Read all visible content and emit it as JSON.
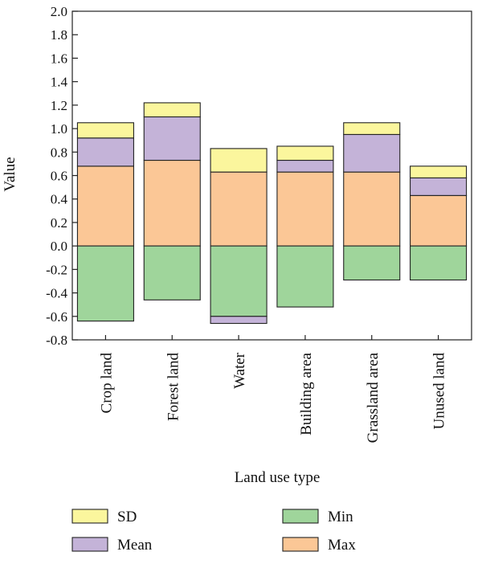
{
  "chart_data": {
    "type": "bar",
    "stacked": true,
    "xlabel": "Land use type",
    "ylabel": "Value",
    "ylim": [
      -0.8,
      2.0
    ],
    "yticks": [
      -0.8,
      -0.6,
      -0.4,
      -0.2,
      0.0,
      0.2,
      0.4,
      0.6,
      0.8,
      1.0,
      1.2,
      1.4,
      1.6,
      1.8,
      2.0
    ],
    "ytick_labels": [
      "-0.8",
      "-0.6",
      "-0.4",
      "-0.2",
      "0.0",
      "0.2",
      "0.4",
      "0.6",
      "0.8",
      "1.0",
      "1.2",
      "1.4",
      "1.6",
      "1.8",
      "2.0"
    ],
    "categories": [
      "Crop land",
      "Forest land",
      "Water",
      "Building area",
      "Grassland area",
      "Unused land"
    ],
    "grid": false,
    "legend_position": "bottom",
    "series": [
      {
        "name": "Max",
        "color": "#fbc796",
        "values": [
          0.68,
          0.73,
          0.63,
          0.63,
          0.63,
          0.43
        ]
      },
      {
        "name": "Mean",
        "color": "#c4b3d8",
        "values": [
          0.24,
          0.37,
          0.0,
          0.1,
          0.32,
          0.15
        ]
      },
      {
        "name": "SD",
        "color": "#fbf69d",
        "values": [
          0.13,
          0.12,
          0.2,
          0.12,
          0.1,
          0.1
        ]
      },
      {
        "name": "Min",
        "color": "#9fd59b",
        "values": [
          -0.64,
          -0.46,
          -0.6,
          -0.52,
          -0.29,
          -0.29
        ]
      },
      {
        "name": "Mean",
        "color": "#c4b3d8",
        "values": [
          0.0,
          0.0,
          -0.06,
          0.0,
          0.0,
          0.0
        ]
      }
    ],
    "legend": [
      {
        "name": "SD",
        "color": "#fbf69d"
      },
      {
        "name": "Min",
        "color": "#9fd59b"
      },
      {
        "name": "Mean",
        "color": "#c4b3d8"
      },
      {
        "name": "Max",
        "color": "#fbc796"
      }
    ]
  }
}
